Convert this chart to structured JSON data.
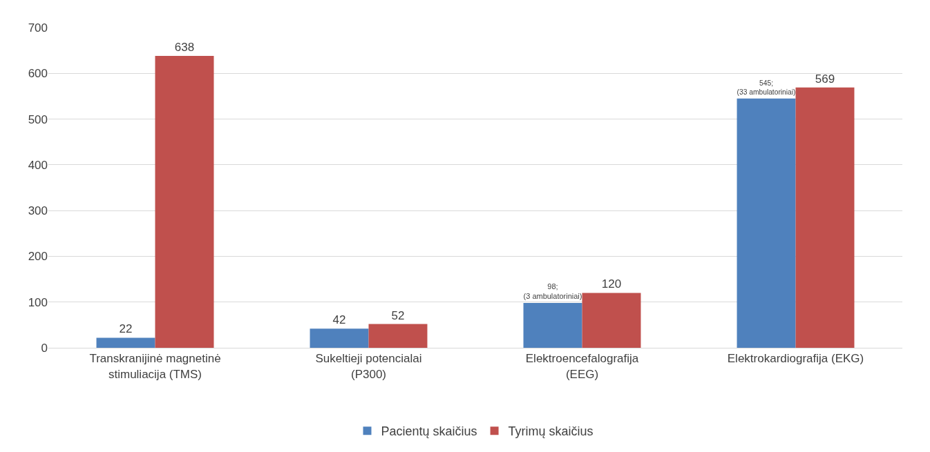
{
  "chart_data": {
    "type": "bar",
    "categories": [
      "Transkranijinė magnetinė\nstimuliacija (TMS)",
      "Sukeltieji potencialai\n(P300)",
      "Elektroencefalografija\n(EEG)",
      "Elektrokardiografija (EKG)"
    ],
    "series": [
      {
        "name": "Pacientų skaičius",
        "color": "#4f81bd",
        "values": [
          22,
          42,
          98,
          545
        ],
        "value_labels": [
          "22",
          "42",
          "98;\n(3 ambulatoriniai)",
          "545;\n(33 ambulatoriniai)"
        ]
      },
      {
        "name": "Tyrimų skaičius",
        "color": "#c0504d",
        "values": [
          638,
          52,
          120,
          569
        ],
        "value_labels": [
          "638",
          "52",
          "120",
          "569"
        ]
      }
    ],
    "ylim": [
      0,
      700
    ],
    "yticks": [
      0,
      100,
      200,
      300,
      400,
      500,
      600,
      700
    ],
    "grid": "y",
    "legend": "bottom"
  }
}
